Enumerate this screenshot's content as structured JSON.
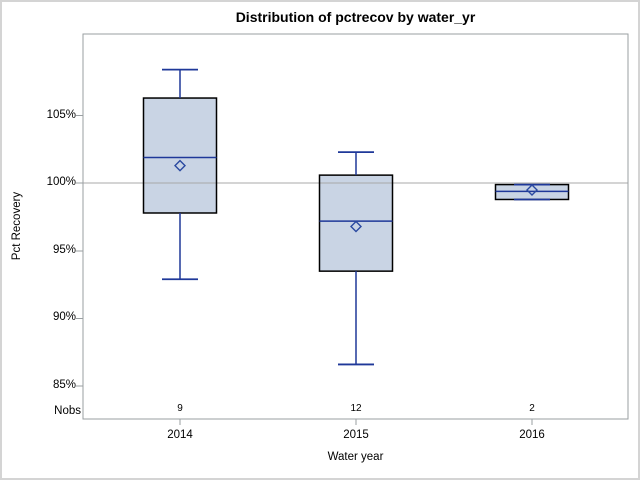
{
  "chart_data": {
    "type": "box",
    "title": "Distribution of pctrecov by water_yr",
    "xlabel": "Water year",
    "ylabel": "Pct Recovery",
    "nobs_label": "Nobs",
    "categories": [
      "2014",
      "2015",
      "2016"
    ],
    "series": [
      {
        "category": "2014",
        "low": 92.9,
        "q1": 97.8,
        "median": 101.9,
        "q3": 106.3,
        "high": 108.4,
        "mean": 101.3,
        "nobs": "9"
      },
      {
        "category": "2015",
        "low": 86.6,
        "q1": 93.5,
        "median": 97.2,
        "q3": 100.6,
        "high": 102.3,
        "mean": 96.8,
        "nobs": "12"
      },
      {
        "category": "2016",
        "low": 98.8,
        "q1": 98.8,
        "median": 99.4,
        "q3": 99.9,
        "high": 99.9,
        "mean": 99.5,
        "nobs": "2"
      }
    ],
    "y_ticks": [
      "85%",
      "90%",
      "95%",
      "100%",
      "105%"
    ],
    "y_tick_values": [
      85,
      90,
      95,
      100,
      105
    ],
    "ylim": [
      82.6,
      111.0
    ],
    "reference_line": 100,
    "grid": "off",
    "legend": "none"
  },
  "colors": {
    "box_fill": "#c9d4e4",
    "box_border": "#000000",
    "line_navy": "#1f3899",
    "mean_marker": "#2a49a0",
    "frame_gray": "#9a9fa2",
    "reference_gray": "#a8a8a8",
    "figure_border": "#d4d4d4"
  }
}
